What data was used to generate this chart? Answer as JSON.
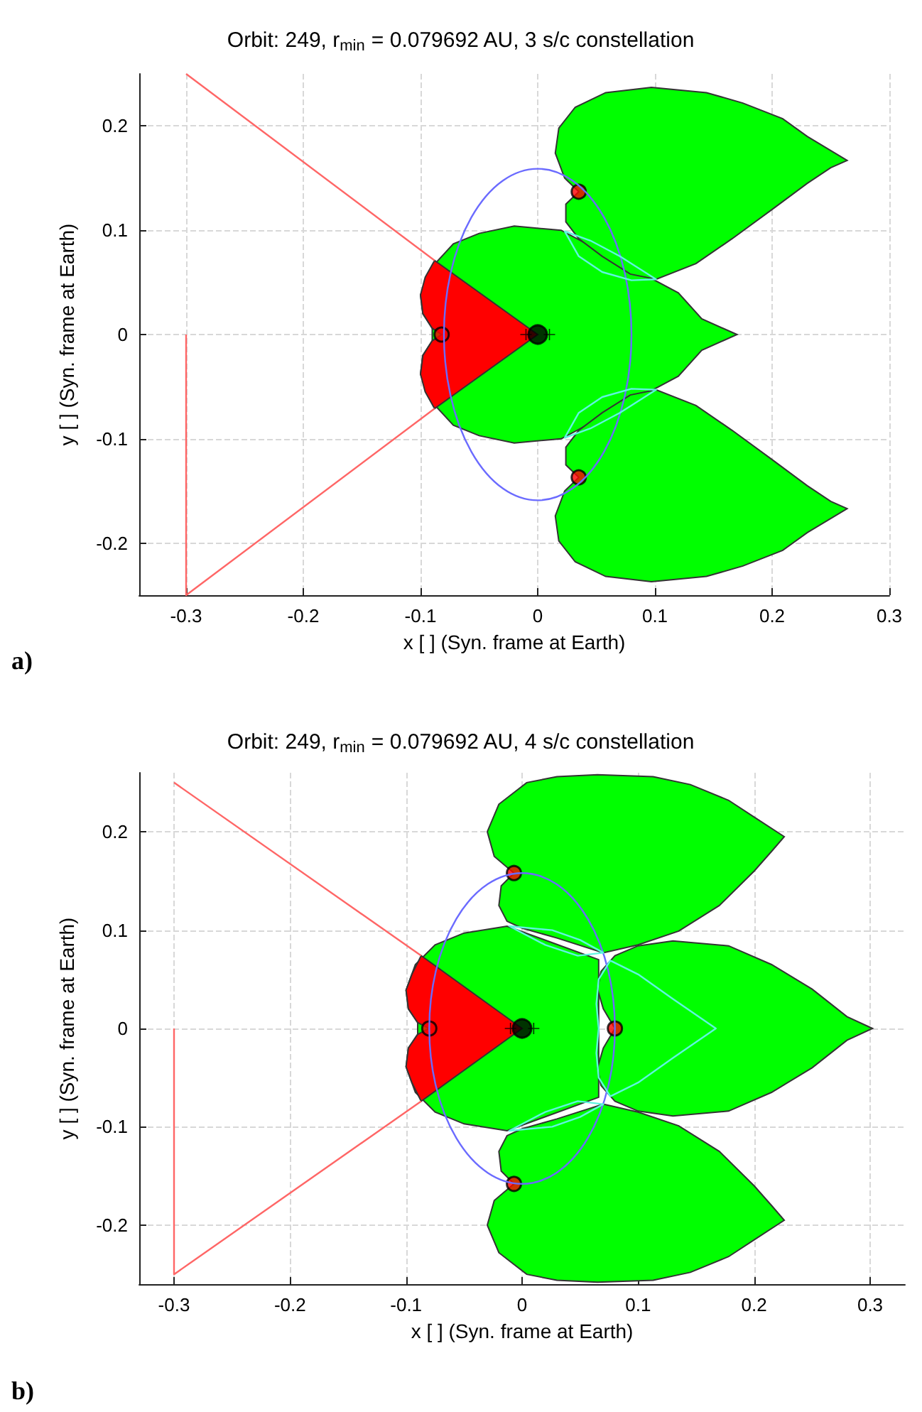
{
  "chart_data": [
    {
      "type": "line",
      "title": "Orbit: 249, r$_{min}$ = 0.079692 AU, 3 s/c constellation",
      "xlabel": "x [ ] (Syn. frame at Earth)",
      "ylabel": "y [ ] (Syn. frame at Earth)",
      "annotations": [
        "a)"
      ],
      "xlim": [
        -0.34,
        0.3
      ],
      "ylim": [
        -0.25,
        0.25
      ],
      "xticks": [
        -0.3,
        -0.2,
        -0.1,
        0,
        0.1,
        0.2,
        0.3
      ],
      "yticks": [
        -0.2,
        -0.1,
        0,
        0.1,
        0.2
      ],
      "grid": true,
      "series": [
        {
          "type": "area",
          "color": "#00ff00",
          "x": [
            0.17,
            0.14,
            0.12,
            null,
            null,
            null,
            0.02,
            -0.02,
            -0.05,
            -0.072,
            -0.09,
            -0.1,
            -0.098,
            -0.09,
            null,
            -0.09,
            -0.098,
            -0.1,
            -0.09,
            -0.072,
            -0.05,
            -0.02,
            0.02,
            null,
            null,
            null,
            0.12,
            0.14
          ],
          "values": [
            0,
            0.015,
            0.04,
            null,
            null,
            null,
            0.1,
            0.104,
            0.097,
            0.087,
            0.065,
            0.038,
            0.02,
            0.006,
            null,
            -0.006,
            -0.02,
            -0.038,
            -0.065,
            -0.087,
            -0.097,
            -0.104,
            -0.1,
            null,
            null,
            null,
            -0.04,
            -0.015
          ]
        },
        {
          "type": "area",
          "color": "#00ff00",
          "x": [
            0.264,
            0.23,
            0.209,
            0.175,
            0.144,
            0.097,
            0.058,
            0.032,
            0.018,
            0.015,
            0.023,
            0.035,
            0.024,
            0.024,
            0.035,
            0.055,
            0.079,
            0.101,
            0.135,
            0.166,
            0.2,
            0.23,
            0.25
          ],
          "values": [
            0.167,
            0.19,
            0.207,
            0.222,
            0.232,
            0.237,
            0.232,
            0.218,
            0.198,
            0.174,
            0.15,
            0.137,
            0.125,
            0.108,
            0.092,
            0.075,
            0.058,
            0.053,
            0.068,
            0.092,
            0.12,
            0.145,
            0.16
          ]
        },
        {
          "type": "area",
          "color": "#00ff00",
          "x": [
            0.264,
            0.23,
            0.209,
            0.175,
            0.144,
            0.097,
            0.058,
            0.032,
            0.018,
            0.015,
            0.023,
            0.035,
            0.024,
            0.024,
            0.035,
            0.055,
            0.079,
            0.101,
            0.135,
            0.166,
            0.2,
            0.23,
            0.25
          ],
          "values": [
            -0.167,
            -0.19,
            -0.207,
            -0.222,
            -0.232,
            -0.237,
            -0.232,
            -0.218,
            -0.198,
            -0.174,
            -0.15,
            -0.137,
            -0.125,
            -0.108,
            -0.092,
            -0.075,
            -0.058,
            -0.053,
            -0.068,
            -0.092,
            -0.12,
            -0.145,
            -0.16
          ]
        },
        {
          "type": "area",
          "color": "#ff0000",
          "x": [
            0,
            -0.088,
            -0.096,
            -0.1,
            -0.098,
            -0.09,
            -0.082,
            -0.09,
            -0.098,
            -0.1,
            -0.096,
            -0.088
          ],
          "values": [
            0,
            0.071,
            0.055,
            0.038,
            0.02,
            0.006,
            0,
            -0.006,
            -0.02,
            -0.038,
            -0.055,
            -0.071
          ]
        },
        {
          "color": "#ff6666",
          "x": [
            -0.3,
            -0.3,
            -0.088
          ],
          "values": [
            0,
            -0.25,
            -0.071
          ]
        },
        {
          "color": "#ff6666",
          "x": [
            -0.3,
            -0.088
          ],
          "values": [
            0.25,
            0.071
          ]
        },
        {
          "type": "scatter",
          "marker": "circle",
          "color": "#ff0000",
          "x": [
            0.035,
            0.035,
            -0.082
          ],
          "values": [
            0.137,
            -0.137,
            0
          ]
        },
        {
          "type": "scatter",
          "marker": "circle",
          "color": "#000000",
          "x": [
            0
          ],
          "values": [
            0
          ]
        },
        {
          "type": "scatter",
          "marker": "cross",
          "color": "#000000",
          "x": [
            -0.01,
            0.01
          ],
          "values": [
            0,
            0
          ]
        }
      ]
    },
    {
      "type": "line",
      "title": "Orbit: 249, r$_{min}$ = 0.079692 AU, 4 s/c constellation",
      "xlabel": "x [ ] (Syn. frame at Earth)",
      "ylabel": "y [ ] (Syn. frame at Earth)",
      "annotations": [
        "b)"
      ],
      "xlim": [
        -0.33,
        0.33
      ],
      "ylim": [
        -0.26,
        0.26
      ],
      "xticks": [
        -0.3,
        -0.2,
        -0.1,
        0,
        0.1,
        0.2,
        0.3
      ],
      "yticks": [
        -0.2,
        -0.1,
        0,
        0.1,
        0.2
      ],
      "grid": true,
      "series": [
        {
          "type": "area",
          "color": "#00ff00",
          "x": [
            null,
            null,
            null,
            null,
            0.066,
            null,
            null,
            -0.013,
            -0.05,
            -0.075,
            -0.092,
            -0.1,
            -0.098,
            -0.09,
            null,
            -0.09,
            -0.098,
            -0.1,
            -0.092,
            -0.075,
            -0.05,
            -0.013,
            null,
            null,
            0.066,
            null,
            null,
            null
          ],
          "values": [
            null,
            null,
            null,
            null,
            0.07,
            null,
            null,
            0.104,
            0.097,
            0.085,
            0.065,
            0.039,
            0.02,
            0.006,
            null,
            -0.006,
            -0.02,
            -0.039,
            -0.065,
            -0.085,
            -0.097,
            -0.104,
            null,
            null,
            -0.07,
            null,
            null,
            null
          ]
        },
        {
          "type": "area",
          "color": "#00ff00",
          "x": [
            0.302,
            0.28,
            0.25,
            0.215,
            0.178,
            0.13,
            0.1,
            0.08,
            0.068,
            0.065,
            0.07,
            0.08,
            0.07,
            0.065,
            0.068,
            0.08,
            0.1,
            0.13,
            0.178,
            0.215,
            0.25,
            0.28
          ],
          "values": [
            0,
            0.012,
            0.04,
            0.065,
            0.084,
            0.089,
            0.084,
            0.074,
            0.058,
            0.04,
            0.02,
            0,
            -0.02,
            -0.04,
            -0.058,
            -0.074,
            -0.084,
            -0.089,
            -0.084,
            -0.065,
            -0.04,
            -0.012
          ]
        },
        {
          "type": "area",
          "color": "#00ff00",
          "x": [
            0.226,
            0.2,
            0.178,
            0.145,
            0.113,
            0.065,
            0.03,
            0.004,
            -0.02,
            -0.03,
            -0.024,
            -0.007,
            -0.018,
            -0.02,
            -0.013,
            0,
            0.03,
            0.07,
            0.1,
            0.135,
            0.17,
            0.2,
            0.215
          ],
          "values": [
            0.195,
            0.215,
            0.232,
            0.248,
            0.256,
            0.258,
            0.256,
            0.25,
            0.228,
            0.2,
            0.175,
            0.158,
            0.145,
            0.125,
            0.109,
            0.102,
            0.092,
            0.077,
            0.085,
            0.099,
            0.125,
            0.16,
            0.18
          ]
        },
        {
          "type": "area",
          "color": "#00ff00",
          "x": [
            0.226,
            0.2,
            0.178,
            0.145,
            0.113,
            0.065,
            0.03,
            0.004,
            -0.02,
            -0.03,
            -0.024,
            -0.007,
            -0.018,
            -0.02,
            -0.013,
            0,
            0.03,
            0.07,
            0.1,
            0.135,
            0.17,
            0.2,
            0.215
          ],
          "values": [
            -0.195,
            -0.215,
            -0.232,
            -0.248,
            -0.256,
            -0.258,
            -0.256,
            -0.25,
            -0.228,
            -0.2,
            -0.175,
            -0.158,
            -0.145,
            -0.125,
            -0.109,
            -0.102,
            -0.092,
            -0.077,
            -0.085,
            -0.099,
            -0.125,
            -0.16,
            -0.18
          ]
        },
        {
          "type": "area",
          "color": "#ff0000",
          "x": [
            0,
            -0.087,
            -0.095,
            -0.1,
            -0.098,
            -0.09,
            -0.08,
            -0.09,
            -0.098,
            -0.1,
            -0.095,
            -0.087
          ],
          "values": [
            0,
            0.074,
            0.055,
            0.039,
            0.02,
            0.006,
            0,
            -0.006,
            -0.02,
            -0.039,
            -0.055,
            -0.074
          ]
        },
        {
          "color": "#ff6666",
          "x": [
            -0.3,
            -0.3,
            -0.087
          ],
          "values": [
            0,
            -0.25,
            -0.074
          ]
        },
        {
          "color": "#ff6666",
          "x": [
            -0.3,
            -0.087
          ],
          "values": [
            0.25,
            0.074
          ]
        },
        {
          "type": "scatter",
          "marker": "circle",
          "color": "#ff0000",
          "x": [
            -0.007,
            -0.007,
            0.08,
            -0.08
          ],
          "values": [
            0.158,
            -0.158,
            0,
            0
          ]
        },
        {
          "type": "scatter",
          "marker": "circle",
          "color": "#000000",
          "x": [
            0
          ],
          "values": [
            0
          ]
        },
        {
          "type": "scatter",
          "marker": "cross",
          "color": "#000000",
          "x": [
            -0.01,
            0.01
          ],
          "values": [
            0,
            0
          ]
        }
      ]
    }
  ]
}
